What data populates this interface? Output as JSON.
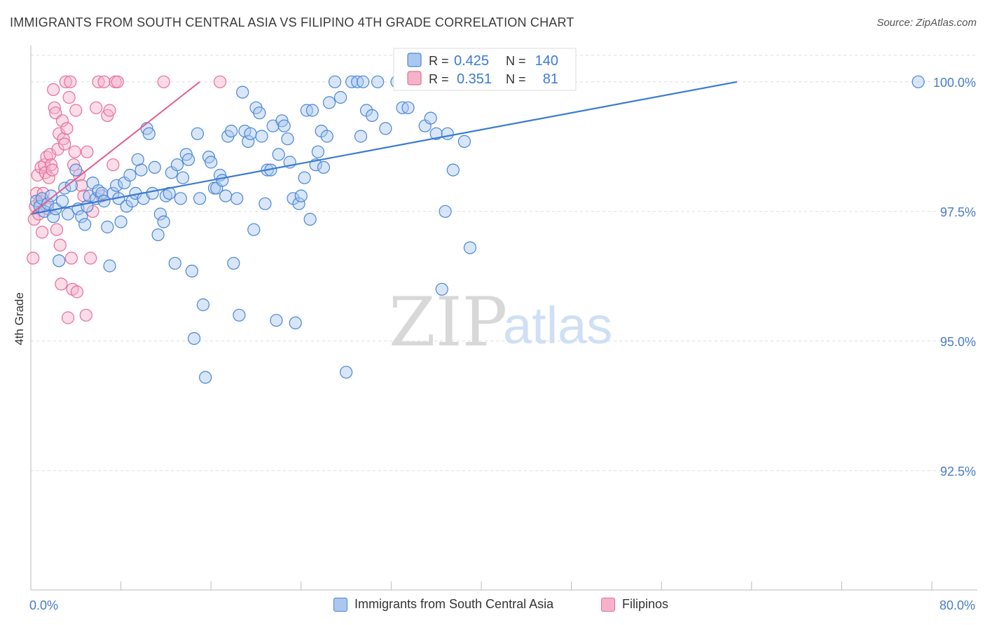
{
  "title": "IMMIGRANTS FROM SOUTH CENTRAL ASIA VS FILIPINO 4TH GRADE CORRELATION CHART",
  "source": "Source: ZipAtlas.com",
  "watermark": {
    "zip": "ZIP",
    "atlas": "atlas"
  },
  "colors": {
    "blue": "#4a86d4",
    "blue_fill": "#a9c7f0",
    "blue_line": "#3a7bd5",
    "pink": "#e86c98",
    "pink_fill": "#f5b3c9",
    "pink_line": "#e35d8e",
    "axis_text": "#4a7cc9",
    "grid": "#dddddd"
  },
  "stats": {
    "r_label": "R =",
    "n_label": "N =",
    "series": [
      {
        "r": "0.425",
        "n": "140"
      },
      {
        "r": "0.351",
        "n": "81"
      }
    ]
  },
  "legend": [
    {
      "label": "Immigrants from South Central Asia"
    },
    {
      "label": "Filipinos"
    }
  ],
  "chart_data": {
    "type": "scatter",
    "title": "IMMIGRANTS FROM SOUTH CENTRAL ASIA VS FILIPINO 4TH GRADE CORRELATION CHART",
    "xlabel": "",
    "ylabel": "4th Grade",
    "xlim": [
      0,
      80
    ],
    "ylim": [
      90.2,
      100.7
    ],
    "x_tick_labels": [
      {
        "value": 0,
        "label": "0.0%"
      },
      {
        "value": 80,
        "label": "80.0%"
      }
    ],
    "y_tick_labels": [
      {
        "value": 100,
        "label": "100.0%"
      },
      {
        "value": 97.5,
        "label": "97.5%"
      },
      {
        "value": 95,
        "label": "95.0%"
      },
      {
        "value": 92.5,
        "label": "92.5%"
      }
    ],
    "grid": true,
    "legend_position": "bottom",
    "series": [
      {
        "name": "Immigrants from South Central Asia",
        "trendline": [
          [
            0,
            97.45
          ],
          [
            62.7,
            100.0
          ]
        ],
        "points": [
          [
            0.5,
            97.7
          ],
          [
            0.8,
            97.6
          ],
          [
            1.0,
            97.75
          ],
          [
            1.2,
            97.5
          ],
          [
            1.5,
            97.65
          ],
          [
            1.8,
            97.8
          ],
          [
            2.0,
            97.4
          ],
          [
            2.2,
            97.55
          ],
          [
            2.5,
            96.55
          ],
          [
            2.8,
            97.7
          ],
          [
            3.0,
            97.95
          ],
          [
            3.3,
            97.45
          ],
          [
            3.6,
            98.0
          ],
          [
            4.0,
            98.3
          ],
          [
            4.2,
            97.55
          ],
          [
            4.5,
            97.4
          ],
          [
            4.8,
            97.25
          ],
          [
            5.0,
            97.6
          ],
          [
            5.2,
            97.8
          ],
          [
            5.5,
            98.05
          ],
          [
            5.8,
            97.75
          ],
          [
            6.0,
            97.9
          ],
          [
            6.3,
            97.85
          ],
          [
            6.5,
            97.7
          ],
          [
            6.8,
            97.2
          ],
          [
            7.0,
            96.45
          ],
          [
            7.3,
            97.85
          ],
          [
            7.6,
            98.0
          ],
          [
            7.8,
            97.75
          ],
          [
            8.0,
            97.3
          ],
          [
            8.3,
            98.05
          ],
          [
            8.5,
            97.6
          ],
          [
            8.8,
            98.2
          ],
          [
            9.0,
            97.7
          ],
          [
            9.3,
            97.85
          ],
          [
            9.5,
            98.5
          ],
          [
            9.8,
            98.3
          ],
          [
            10.0,
            97.75
          ],
          [
            10.3,
            99.1
          ],
          [
            10.5,
            99.0
          ],
          [
            10.8,
            97.85
          ],
          [
            11.0,
            98.35
          ],
          [
            11.3,
            97.05
          ],
          [
            11.5,
            97.45
          ],
          [
            11.8,
            97.3
          ],
          [
            12.0,
            97.8
          ],
          [
            12.3,
            97.85
          ],
          [
            12.5,
            98.25
          ],
          [
            12.8,
            96.5
          ],
          [
            13.0,
            98.4
          ],
          [
            13.3,
            97.75
          ],
          [
            13.5,
            98.15
          ],
          [
            13.8,
            98.6
          ],
          [
            14.0,
            98.5
          ],
          [
            14.3,
            96.35
          ],
          [
            14.5,
            95.05
          ],
          [
            14.8,
            99.0
          ],
          [
            15.0,
            97.75
          ],
          [
            15.3,
            95.7
          ],
          [
            15.5,
            94.3
          ],
          [
            15.8,
            98.55
          ],
          [
            16.0,
            98.45
          ],
          [
            16.3,
            97.95
          ],
          [
            16.5,
            97.95
          ],
          [
            16.8,
            98.2
          ],
          [
            17.0,
            98.1
          ],
          [
            17.3,
            97.8
          ],
          [
            17.5,
            98.95
          ],
          [
            17.8,
            99.05
          ],
          [
            18.0,
            96.5
          ],
          [
            18.3,
            97.75
          ],
          [
            18.5,
            95.5
          ],
          [
            18.8,
            99.8
          ],
          [
            19.0,
            99.05
          ],
          [
            19.3,
            98.85
          ],
          [
            19.5,
            99.0
          ],
          [
            19.8,
            97.15
          ],
          [
            20.0,
            99.5
          ],
          [
            20.3,
            99.4
          ],
          [
            20.5,
            98.95
          ],
          [
            20.8,
            97.65
          ],
          [
            21.0,
            98.3
          ],
          [
            21.3,
            98.3
          ],
          [
            21.5,
            99.15
          ],
          [
            21.8,
            95.4
          ],
          [
            22.0,
            98.6
          ],
          [
            22.3,
            99.25
          ],
          [
            22.5,
            99.15
          ],
          [
            22.8,
            98.9
          ],
          [
            23.0,
            98.45
          ],
          [
            23.3,
            97.75
          ],
          [
            23.5,
            95.35
          ],
          [
            23.8,
            97.65
          ],
          [
            24.0,
            97.8
          ],
          [
            24.3,
            98.15
          ],
          [
            24.5,
            99.45
          ],
          [
            24.8,
            97.35
          ],
          [
            25.0,
            99.45
          ],
          [
            25.3,
            98.4
          ],
          [
            25.5,
            98.65
          ],
          [
            25.8,
            99.05
          ],
          [
            26.0,
            98.35
          ],
          [
            26.3,
            98.95
          ],
          [
            26.5,
            99.6
          ],
          [
            27.0,
            100.0
          ],
          [
            27.5,
            99.7
          ],
          [
            28.0,
            94.4
          ],
          [
            28.5,
            100.0
          ],
          [
            29.0,
            100.0
          ],
          [
            29.3,
            98.95
          ],
          [
            29.5,
            100.0
          ],
          [
            29.8,
            99.45
          ],
          [
            30.3,
            99.35
          ],
          [
            30.8,
            100.0
          ],
          [
            31.5,
            99.1
          ],
          [
            32.5,
            100.0
          ],
          [
            33.0,
            99.5
          ],
          [
            33.5,
            99.5
          ],
          [
            34.0,
            100.0
          ],
          [
            35.0,
            99.15
          ],
          [
            35.5,
            99.3
          ],
          [
            36.0,
            99.0
          ],
          [
            36.5,
            96.0
          ],
          [
            36.8,
            97.5
          ],
          [
            37.0,
            99.0
          ],
          [
            37.5,
            98.3
          ],
          [
            38.5,
            98.85
          ],
          [
            39.0,
            96.8
          ],
          [
            40.5,
            100.0
          ],
          [
            41.0,
            100.0
          ],
          [
            78.8,
            100.0
          ]
        ]
      },
      {
        "name": "Filipinos",
        "trendline": [
          [
            0,
            97.45
          ],
          [
            15.0,
            100.0
          ]
        ],
        "points": [
          [
            0.2,
            96.6
          ],
          [
            0.3,
            97.35
          ],
          [
            0.4,
            97.6
          ],
          [
            0.5,
            97.85
          ],
          [
            0.6,
            98.2
          ],
          [
            0.7,
            97.45
          ],
          [
            0.8,
            97.7
          ],
          [
            0.9,
            98.35
          ],
          [
            1.0,
            97.1
          ],
          [
            1.1,
            97.85
          ],
          [
            1.2,
            98.4
          ],
          [
            1.3,
            98.25
          ],
          [
            1.4,
            98.55
          ],
          [
            1.5,
            97.55
          ],
          [
            1.6,
            98.15
          ],
          [
            1.7,
            98.6
          ],
          [
            1.8,
            98.4
          ],
          [
            1.9,
            98.3
          ],
          [
            2.0,
            99.85
          ],
          [
            2.1,
            99.5
          ],
          [
            2.2,
            99.4
          ],
          [
            2.3,
            97.15
          ],
          [
            2.4,
            98.7
          ],
          [
            2.5,
            99.0
          ],
          [
            2.6,
            96.85
          ],
          [
            2.7,
            96.1
          ],
          [
            2.8,
            99.25
          ],
          [
            2.9,
            98.9
          ],
          [
            3.0,
            98.8
          ],
          [
            3.1,
            100.0
          ],
          [
            3.2,
            99.1
          ],
          [
            3.3,
            95.45
          ],
          [
            3.4,
            99.7
          ],
          [
            3.5,
            100.0
          ],
          [
            3.6,
            96.6
          ],
          [
            3.7,
            96.0
          ],
          [
            3.8,
            98.4
          ],
          [
            3.9,
            98.65
          ],
          [
            4.0,
            99.45
          ],
          [
            4.1,
            95.95
          ],
          [
            4.3,
            98.2
          ],
          [
            4.5,
            98.0
          ],
          [
            4.7,
            97.8
          ],
          [
            4.9,
            95.5
          ],
          [
            5.0,
            98.65
          ],
          [
            5.3,
            96.6
          ],
          [
            5.5,
            97.5
          ],
          [
            5.8,
            99.5
          ],
          [
            6.0,
            100.0
          ],
          [
            6.3,
            97.8
          ],
          [
            6.5,
            100.0
          ],
          [
            6.8,
            99.35
          ],
          [
            7.0,
            99.45
          ],
          [
            7.3,
            98.4
          ],
          [
            7.5,
            100.0
          ],
          [
            7.7,
            100.0
          ],
          [
            11.8,
            100.0
          ],
          [
            16.8,
            100.0
          ]
        ]
      }
    ]
  }
}
